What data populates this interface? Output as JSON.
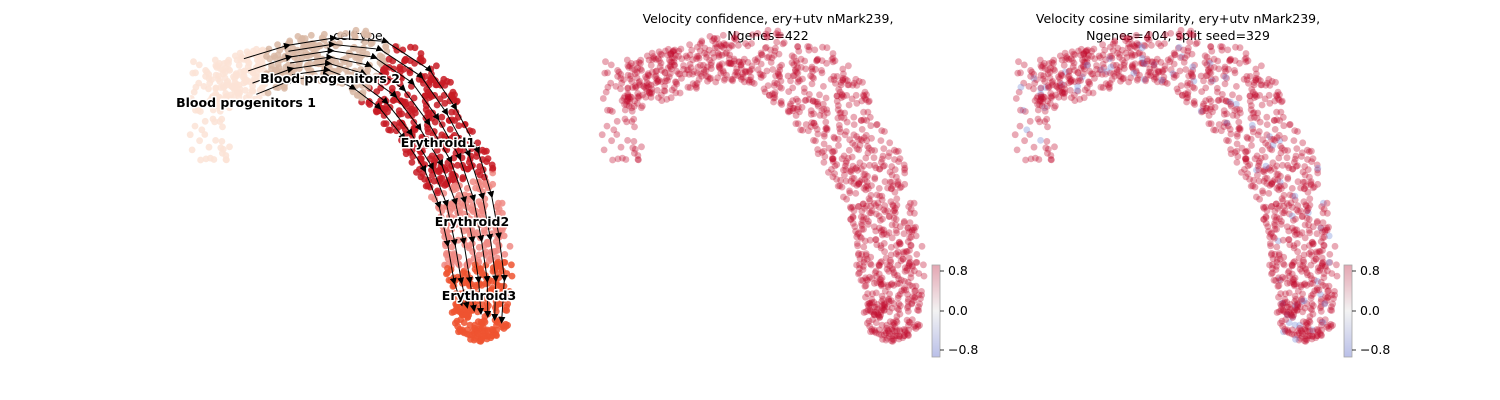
{
  "chart_data": [
    {
      "type": "scatter",
      "title": "celltype",
      "legend": "on data",
      "categories": [
        "Blood progenitors 1",
        "Blood progenitors 2",
        "Erythroid1",
        "Erythroid2",
        "Erythroid3"
      ],
      "category_colors": [
        "#fbe3d6",
        "#d9b8a4",
        "#c81b25",
        "#f08a84",
        "#ee5330"
      ],
      "overlay": "velocity streamlines",
      "axes": "off"
    },
    {
      "type": "scatter",
      "title": "Velocity confidence, ery+utv nMark239,",
      "subtitle": "Ngenes=422",
      "point_color": "#c00a2a",
      "colorbar": {
        "ticks": [
          "0.8",
          "0.0",
          "−0.8"
        ],
        "range": [
          -1,
          1
        ],
        "cmap": "coolwarm"
      },
      "axes": "off"
    },
    {
      "type": "scatter",
      "title": "Velocity cosine similarity, ery+utv nMark239,",
      "subtitle": "Ngenes=404, split seed=329",
      "point_color": "#c00a2a",
      "colorbar": {
        "ticks": [
          "0.8",
          "0.0",
          "−0.8"
        ],
        "range": [
          -1,
          1
        ],
        "cmap": "coolwarm"
      },
      "axes": "off"
    }
  ]
}
